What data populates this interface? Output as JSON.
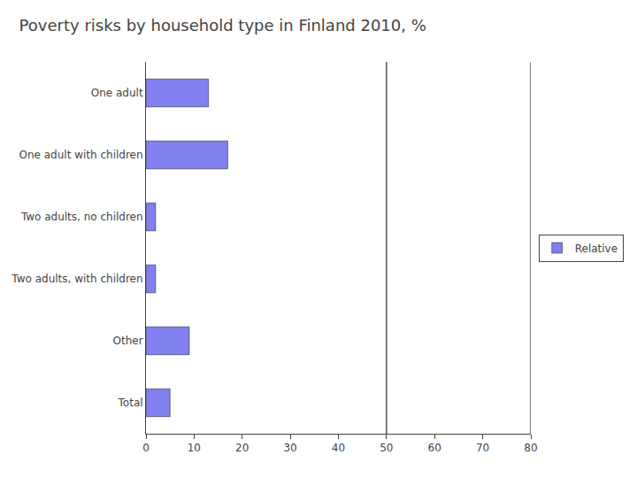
{
  "chart_data": {
    "type": "bar",
    "orientation": "horizontal",
    "title": "Poverty risks by household type in Finland 2010, %",
    "categories": [
      "One adult",
      "One adult with children",
      "Two adults, no children",
      "Two adults, with children",
      "Other",
      "Total"
    ],
    "series": [
      {
        "name": "Relative",
        "color": "#8080ee",
        "values": [
          13,
          17,
          2,
          2,
          9,
          5
        ]
      }
    ],
    "xlim": [
      0,
      80
    ],
    "xticks": [
      0,
      10,
      20,
      30,
      40,
      50,
      60,
      70,
      80
    ],
    "vlines": [
      50,
      80
    ],
    "grid": false,
    "legend": "right"
  }
}
